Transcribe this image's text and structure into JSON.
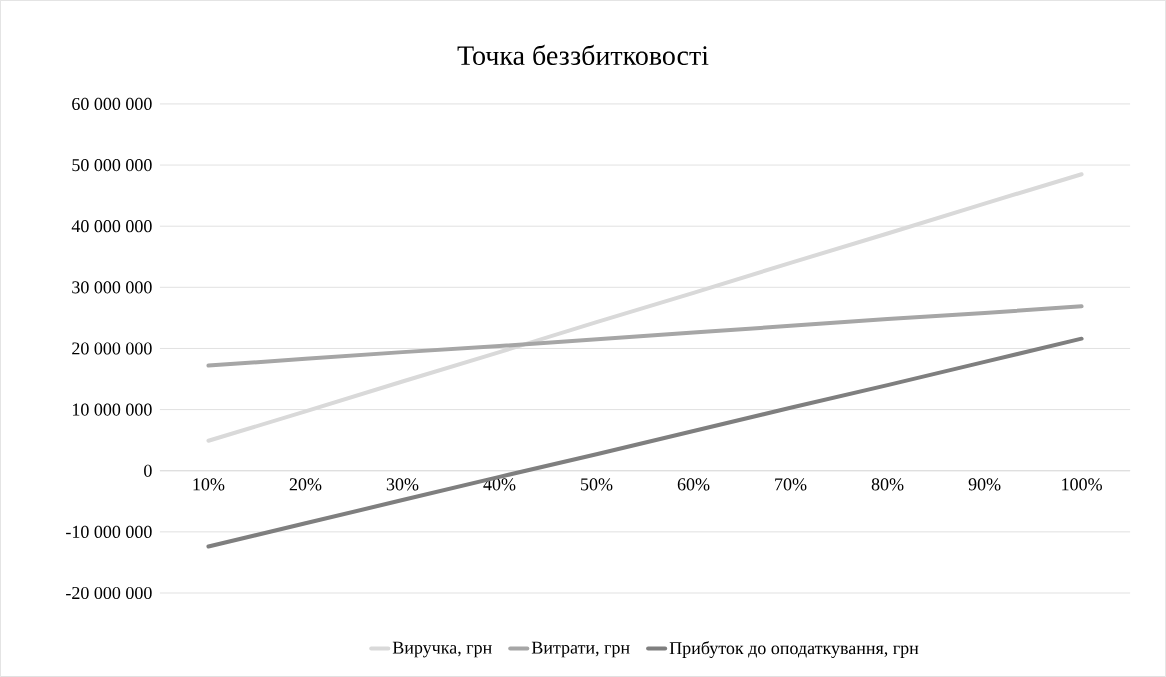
{
  "chart_data": {
    "type": "line",
    "title": "Точка беззбитковості",
    "categories": [
      "10%",
      "20%",
      "30%",
      "40%",
      "50%",
      "60%",
      "70%",
      "80%",
      "90%",
      "100%"
    ],
    "series": [
      {
        "name": "Виручка, грн",
        "color": "#d9d9d9",
        "values": [
          4900000,
          9700000,
          14600000,
          19400000,
          24300000,
          29100000,
          34000000,
          38800000,
          43700000,
          48500000
        ]
      },
      {
        "name": "Витрати, грн",
        "color": "#a6a6a6",
        "values": [
          17200000,
          18300000,
          19400000,
          20400000,
          21500000,
          22600000,
          23700000,
          24800000,
          25800000,
          26900000
        ]
      },
      {
        "name": "Прибуток до оподаткування, грн",
        "color": "#7f7f7f",
        "values": [
          -12400000,
          -8600000,
          -4800000,
          -1000000,
          2700000,
          6500000,
          10300000,
          14000000,
          17800000,
          21600000
        ]
      }
    ],
    "ylim": [
      -20000000,
      60000000
    ],
    "yticks": [
      {
        "value": -20000000,
        "label": "-20 000 000"
      },
      {
        "value": -10000000,
        "label": "-10 000 000"
      },
      {
        "value": 0,
        "label": "0"
      },
      {
        "value": 10000000,
        "label": "10 000 000"
      },
      {
        "value": 20000000,
        "label": "20 000 000"
      },
      {
        "value": 30000000,
        "label": "30 000 000"
      },
      {
        "value": 40000000,
        "label": "40 000 000"
      },
      {
        "value": 50000000,
        "label": "50 000 000"
      },
      {
        "value": 60000000,
        "label": "60 000 000"
      }
    ],
    "grid": "y",
    "legend": "bottom",
    "marker": "none",
    "line_style": "solid"
  }
}
